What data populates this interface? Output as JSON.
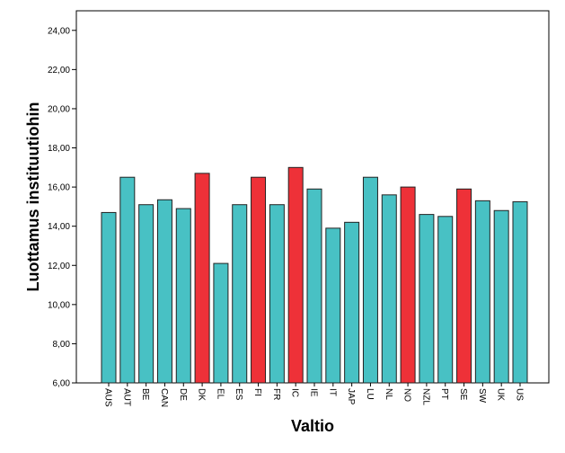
{
  "chart_data": {
    "type": "bar",
    "xlabel": "Valtio",
    "ylabel": "Luottamus instituutiohin",
    "ylim": [
      6,
      25
    ],
    "yticks": [
      6,
      8,
      10,
      12,
      14,
      16,
      18,
      20,
      22,
      24
    ],
    "ytick_labels": [
      "6,00",
      "8,00",
      "10,00",
      "12,00",
      "14,00",
      "16,00",
      "18,00",
      "20,00",
      "22,00",
      "24,00"
    ],
    "grid": false,
    "colors": {
      "default": "#48c1c4",
      "highlight": "#ee3138",
      "edge": "#222222"
    },
    "categories": [
      "AUS",
      "AUT",
      "BE",
      "CAN",
      "DE",
      "DK",
      "EL",
      "ES",
      "FI",
      "FR",
      "IC",
      "IE",
      "IT",
      "JAP",
      "LU",
      "NL",
      "NO",
      "NZL",
      "PT",
      "SE",
      "SW",
      "UK",
      "US"
    ],
    "values": [
      14.7,
      16.5,
      15.1,
      15.35,
      14.9,
      16.7,
      12.1,
      15.1,
      16.5,
      15.1,
      17.0,
      15.9,
      13.9,
      14.2,
      16.5,
      15.6,
      16.0,
      14.6,
      14.5,
      15.9,
      15.3,
      14.8,
      15.25
    ],
    "highlight": [
      false,
      false,
      false,
      false,
      false,
      true,
      false,
      false,
      true,
      false,
      true,
      false,
      false,
      false,
      false,
      false,
      true,
      false,
      false,
      true,
      false,
      false,
      false
    ]
  }
}
